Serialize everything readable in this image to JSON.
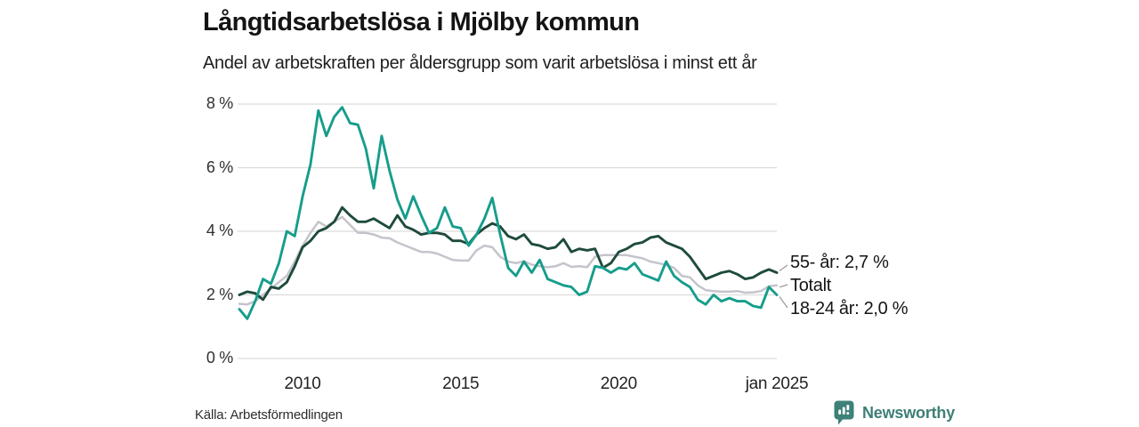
{
  "header": {
    "title": "Långtidsarbetslösa i Mjölby kommun",
    "subtitle": "Andel av arbetskraften per åldersgrupp som varit arbetslösa i minst ett år"
  },
  "footer": {
    "source": "Källa: Arbetsförmedlingen",
    "brand": "Newsworthy",
    "brand_icon": "newsworthy-speech-bubble-bar-chart-icon",
    "brand_color": "#3E7F77"
  },
  "colors": {
    "grid": "#dcdcdc",
    "connector": "#999999",
    "tick_text": "#303030"
  },
  "chart_data": {
    "type": "line",
    "title": "Långtidsarbetslösa i Mjölby kommun",
    "subtitle": "Andel av arbetskraften per åldersgrupp som varit arbetslösa i minst ett år",
    "xlabel": "",
    "ylabel": "",
    "x_range": [
      2008.0,
      2025.0
    ],
    "ylim": [
      0,
      8
    ],
    "grid": "horizontal",
    "legend_position": "right-end-labels",
    "x_ticks": [
      {
        "value": 2010,
        "label": "2010"
      },
      {
        "value": 2015,
        "label": "2015"
      },
      {
        "value": 2020,
        "label": "2020"
      },
      {
        "value": 2025,
        "label": "jan 2025"
      }
    ],
    "y_ticks": [
      {
        "value": 0,
        "label": "0 %"
      },
      {
        "value": 2,
        "label": "2 %"
      },
      {
        "value": 4,
        "label": "4 %"
      },
      {
        "value": 6,
        "label": "6 %"
      },
      {
        "value": 8,
        "label": "8 %"
      }
    ],
    "x_unit": "decimal_year_quarterly",
    "x": [
      2008.0,
      2008.25,
      2008.5,
      2008.75,
      2009.0,
      2009.25,
      2009.5,
      2009.75,
      2010.0,
      2010.25,
      2010.5,
      2010.75,
      2011.0,
      2011.25,
      2011.5,
      2011.75,
      2012.0,
      2012.25,
      2012.5,
      2012.75,
      2013.0,
      2013.25,
      2013.5,
      2013.75,
      2014.0,
      2014.25,
      2014.5,
      2014.75,
      2015.0,
      2015.25,
      2015.5,
      2015.75,
      2016.0,
      2016.25,
      2016.5,
      2016.75,
      2017.0,
      2017.25,
      2017.5,
      2017.75,
      2018.0,
      2018.25,
      2018.5,
      2018.75,
      2019.0,
      2019.25,
      2019.5,
      2019.75,
      2020.0,
      2020.25,
      2020.5,
      2020.75,
      2021.0,
      2021.25,
      2021.5,
      2021.75,
      2022.0,
      2022.25,
      2022.5,
      2022.75,
      2023.0,
      2023.25,
      2023.5,
      2023.75,
      2024.0,
      2024.25,
      2024.5,
      2024.75,
      2025.0
    ],
    "series": [
      {
        "name": "55- år",
        "end_label": "55- år: 2,7 %",
        "last_value": 2.7,
        "color": "#1E4B3C",
        "values": [
          2.0,
          2.1,
          2.05,
          1.85,
          2.25,
          2.2,
          2.4,
          2.9,
          3.5,
          3.7,
          4.0,
          4.1,
          4.3,
          4.75,
          4.5,
          4.3,
          4.3,
          4.4,
          4.25,
          4.1,
          4.5,
          4.15,
          4.05,
          3.9,
          3.95,
          3.95,
          3.9,
          3.7,
          3.7,
          3.6,
          3.9,
          4.1,
          4.25,
          4.15,
          3.85,
          3.75,
          3.9,
          3.6,
          3.55,
          3.45,
          3.5,
          3.75,
          3.35,
          3.45,
          3.4,
          3.45,
          2.85,
          3.0,
          3.35,
          3.45,
          3.6,
          3.65,
          3.8,
          3.85,
          3.65,
          3.55,
          3.45,
          3.2,
          2.85,
          2.5,
          2.6,
          2.7,
          2.75,
          2.65,
          2.5,
          2.55,
          2.7,
          2.8,
          2.7
        ]
      },
      {
        "name": "Totalt",
        "end_label": "Totalt",
        "last_value": 2.3,
        "color": "#C5C4CC",
        "values": [
          1.72,
          1.7,
          1.8,
          2.0,
          2.2,
          2.4,
          2.6,
          3.05,
          3.55,
          3.95,
          4.3,
          4.15,
          4.3,
          4.45,
          4.2,
          3.95,
          3.95,
          3.9,
          3.8,
          3.78,
          3.65,
          3.55,
          3.45,
          3.35,
          3.35,
          3.3,
          3.2,
          3.1,
          3.08,
          3.08,
          3.4,
          3.55,
          3.5,
          3.2,
          3.05,
          3.0,
          3.06,
          2.95,
          2.9,
          2.87,
          2.9,
          3.0,
          2.88,
          2.9,
          2.87,
          3.2,
          3.25,
          3.25,
          3.25,
          3.25,
          3.2,
          3.15,
          3.05,
          3.0,
          2.94,
          2.85,
          2.6,
          2.55,
          2.3,
          2.15,
          2.12,
          2.1,
          2.1,
          2.12,
          2.07,
          2.08,
          2.12,
          2.27,
          2.3
        ]
      },
      {
        "name": "18-24 år",
        "end_label": "18-24 år: 2,0 %",
        "last_value": 2.0,
        "color": "#169D8B",
        "values": [
          1.55,
          1.25,
          1.8,
          2.5,
          2.35,
          3.0,
          4.0,
          3.85,
          5.1,
          6.1,
          7.8,
          7.0,
          7.6,
          7.9,
          7.4,
          7.35,
          6.6,
          5.35,
          7.0,
          5.9,
          5.0,
          4.4,
          5.1,
          4.5,
          3.95,
          4.1,
          4.75,
          4.15,
          4.1,
          3.55,
          3.9,
          4.4,
          5.05,
          3.9,
          2.85,
          2.6,
          3.05,
          2.7,
          3.1,
          2.5,
          2.4,
          2.3,
          2.25,
          2.0,
          2.1,
          2.9,
          2.85,
          2.7,
          2.85,
          2.8,
          3.0,
          2.65,
          2.55,
          2.45,
          3.05,
          2.6,
          2.4,
          2.25,
          1.85,
          1.7,
          2.0,
          1.8,
          1.9,
          1.8,
          1.8,
          1.65,
          1.6,
          2.25,
          2.0
        ]
      }
    ]
  }
}
